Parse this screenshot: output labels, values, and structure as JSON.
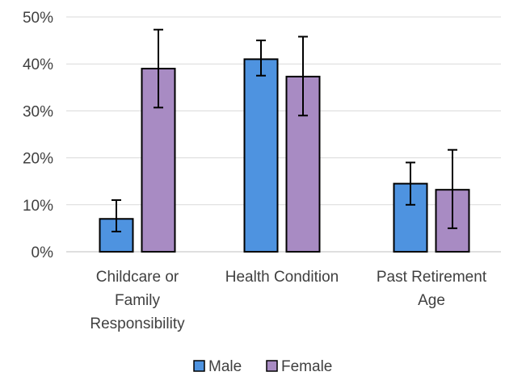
{
  "chart_data": {
    "type": "bar",
    "categories": [
      [
        "Childcare or",
        "Family",
        "Responsibility"
      ],
      [
        "Health Condition"
      ],
      [
        "Past Retirement",
        "Age"
      ]
    ],
    "series": [
      {
        "name": "Male",
        "color": "#4e93e0",
        "values": [
          7,
          41,
          14.5
        ],
        "err_low": [
          4.3,
          37.5,
          10
        ],
        "err_high": [
          11,
          45,
          19
        ]
      },
      {
        "name": "Female",
        "color": "#a88bc3",
        "values": [
          39,
          37.3,
          13.2
        ],
        "err_low": [
          30.7,
          29,
          5
        ],
        "err_high": [
          47.3,
          45.8,
          21.7
        ]
      }
    ],
    "ylim": [
      0,
      50
    ],
    "yticks": [
      0,
      10,
      20,
      30,
      40,
      50
    ],
    "ytick_labels": [
      "0%",
      "10%",
      "20%",
      "30%",
      "40%",
      "50%"
    ],
    "grid": true,
    "legend_position": "bottom"
  }
}
